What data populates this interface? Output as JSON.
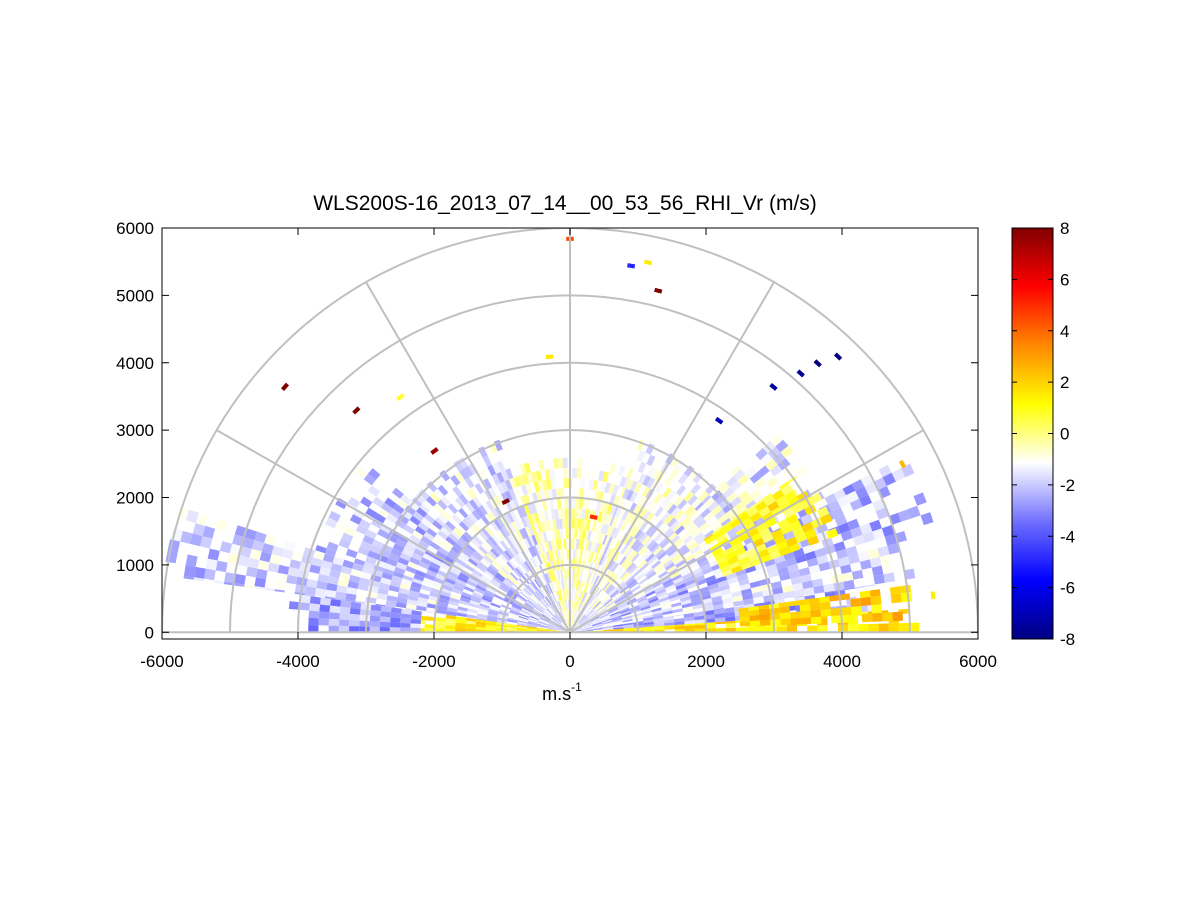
{
  "chart_data": {
    "type": "heatmap",
    "subtype": "polar RHI scan",
    "title": "WLS200S-16_2013_07_14__00_53_56_RHI_Vr (m/s)",
    "xlabel": "m.s",
    "xlabel_superscript": "-1",
    "ylabel": "",
    "xlim": [
      -6000,
      6000
    ],
    "ylim": [
      -100,
      6000
    ],
    "x_ticks": [
      "-6000",
      "-4000",
      "-2000",
      "0",
      "2000",
      "4000",
      "6000"
    ],
    "y_ticks": [
      "0",
      "1000",
      "2000",
      "3000",
      "4000",
      "5000",
      "6000"
    ],
    "x_tick_values": [
      -6000,
      -4000,
      -2000,
      0,
      2000,
      4000,
      6000
    ],
    "y_tick_values": [
      0,
      1000,
      2000,
      3000,
      4000,
      5000,
      6000
    ],
    "polar_grid": {
      "range_rings": [
        1000,
        2000,
        3000,
        4000,
        5000,
        6000
      ],
      "spokes_deg": [
        0,
        30,
        60,
        90,
        120,
        150,
        180
      ],
      "grid_color": "#c0c0c0"
    },
    "colorbar": {
      "min": -8,
      "max": 8,
      "ticks": [
        "-8",
        "-6",
        "-4",
        "-2",
        "0",
        "2",
        "4",
        "6",
        "8"
      ],
      "tick_values": [
        -8,
        -6,
        -4,
        -2,
        0,
        2,
        4,
        6,
        8
      ],
      "colormap": [
        "#000080",
        "#0000ff",
        "#7070ff",
        "#ffffff",
        "#ffff00",
        "#ff8800",
        "#ff0000",
        "#800000"
      ]
    },
    "grid": true,
    "velocity_field": {
      "units": "m/s",
      "note": "approximate radial velocity regions by elevation angle and range",
      "regions": [
        {
          "az0": 0,
          "az1": 4,
          "r0": 0,
          "r1": 5000,
          "v": 1.5
        },
        {
          "az0": 4,
          "az1": 9,
          "r0": 0,
          "r1": 4500,
          "v": -2.5
        },
        {
          "az0": 9,
          "az1": 17,
          "r0": 0,
          "r1": 5000,
          "v": -1.8
        },
        {
          "az0": 17,
          "az1": 28,
          "r0": 0,
          "r1": 5500,
          "v": -2.2
        },
        {
          "az0": 28,
          "az1": 45,
          "r0": 0,
          "r1": 4200,
          "v": -1.5
        },
        {
          "az0": 45,
          "az1": 70,
          "r0": 0,
          "r1": 3000,
          "v": -1.2
        },
        {
          "az0": 70,
          "az1": 110,
          "r0": 0,
          "r1": 2500,
          "v": -0.6
        },
        {
          "az0": 110,
          "az1": 140,
          "r0": 0,
          "r1": 2900,
          "v": -1.6
        },
        {
          "az0": 140,
          "az1": 162,
          "r0": 0,
          "r1": 3800,
          "v": -2.0
        },
        {
          "az0": 162,
          "az1": 172,
          "r0": 0,
          "r1": 6000,
          "v": -1.9
        },
        {
          "az0": 172,
          "az1": 180,
          "r0": 0,
          "r1": 2200,
          "v": 1.2
        },
        {
          "az0": 172,
          "az1": 180,
          "r0": 2200,
          "r1": 4200,
          "v": -2.5
        },
        {
          "az0": 20,
          "az1": 35,
          "r0": 2400,
          "r1": 4200,
          "v": 1.0
        },
        {
          "az0": 2,
          "az1": 8,
          "r0": 2500,
          "r1": 5000,
          "v": 2.0
        }
      ],
      "scattered_cells": [
        {
          "x": -4200,
          "y": 3650,
          "v": 8
        },
        {
          "x": -3150,
          "y": 3300,
          "v": 8
        },
        {
          "x": -2000,
          "y": 2700,
          "v": 7.5
        },
        {
          "x": -950,
          "y": 1950,
          "v": 8
        },
        {
          "x": 1300,
          "y": 5080,
          "v": 8
        },
        {
          "x": 0,
          "y": 5850,
          "v": 4.5
        },
        {
          "x": 350,
          "y": 1720,
          "v": 5
        },
        {
          "x": 3000,
          "y": 3650,
          "v": -7.5
        },
        {
          "x": 3400,
          "y": 3850,
          "v": -7.5
        },
        {
          "x": 3650,
          "y": 4000,
          "v": -8
        },
        {
          "x": 3950,
          "y": 4100,
          "v": -8
        },
        {
          "x": 2200,
          "y": 3150,
          "v": -7
        },
        {
          "x": 900,
          "y": 5450,
          "v": -5
        },
        {
          "x": 1150,
          "y": 5500,
          "v": 1.5
        },
        {
          "x": -2500,
          "y": 3500,
          "v": 0.8
        },
        {
          "x": 4900,
          "y": 2500,
          "v": 2.5
        },
        {
          "x": 5350,
          "y": 550,
          "v": 1.5
        },
        {
          "x": -300,
          "y": 4100,
          "v": 1.5
        }
      ]
    }
  }
}
